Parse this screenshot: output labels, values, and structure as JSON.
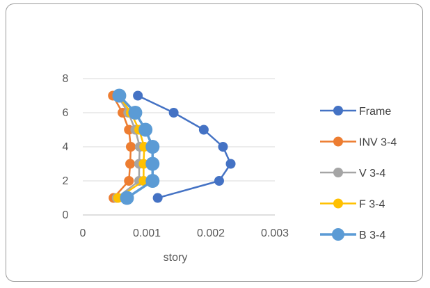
{
  "chart_data": {
    "type": "line",
    "xlabel": "story",
    "ylabel": "",
    "xlim": [
      0,
      0.003
    ],
    "ylim": [
      0,
      8
    ],
    "x_ticks": [
      "0",
      "0.001",
      "0.002",
      "0.003"
    ],
    "y_ticks": [
      "0",
      "2",
      "4",
      "6",
      "8"
    ],
    "grid": "horizontal",
    "legend_position": "right",
    "series": [
      {
        "name": "Frame",
        "color": "#4472C4",
        "marker_size": "small",
        "points": [
          [
            0.00117,
            1
          ],
          [
            0.00213,
            2
          ],
          [
            0.00231,
            3
          ],
          [
            0.00219,
            4
          ],
          [
            0.00189,
            5
          ],
          [
            0.00142,
            6
          ],
          [
            0.00086,
            7
          ]
        ]
      },
      {
        "name": "INV 3-4",
        "color": "#ED7D31",
        "marker_size": "small",
        "points": [
          [
            0.00048,
            1
          ],
          [
            0.00072,
            2
          ],
          [
            0.00074,
            3
          ],
          [
            0.00075,
            4
          ],
          [
            0.00072,
            5
          ],
          [
            0.00062,
            6
          ],
          [
            0.00047,
            7
          ]
        ]
      },
      {
        "name": "V 3-4",
        "color": "#A5A5A5",
        "marker_size": "small",
        "points": [
          [
            0.00053,
            1
          ],
          [
            0.00088,
            2
          ],
          [
            0.00088,
            3
          ],
          [
            0.00089,
            4
          ],
          [
            0.00082,
            5
          ],
          [
            0.00071,
            6
          ],
          [
            0.00054,
            7
          ]
        ]
      },
      {
        "name": "F 3-4",
        "color": "#FFC000",
        "marker_size": "small",
        "points": [
          [
            0.00055,
            1
          ],
          [
            0.00095,
            2
          ],
          [
            0.00095,
            3
          ],
          [
            0.00096,
            4
          ],
          [
            0.00088,
            5
          ],
          [
            0.00075,
            6
          ],
          [
            0.00056,
            7
          ]
        ]
      },
      {
        "name": "B 3-4",
        "color": "#5B9BD5",
        "marker_size": "large",
        "points": [
          [
            0.00069,
            1
          ],
          [
            0.00109,
            2
          ],
          [
            0.00109,
            3
          ],
          [
            0.00109,
            4
          ],
          [
            0.00098,
            5
          ],
          [
            0.00082,
            6
          ],
          [
            0.00057,
            7
          ]
        ]
      }
    ]
  }
}
